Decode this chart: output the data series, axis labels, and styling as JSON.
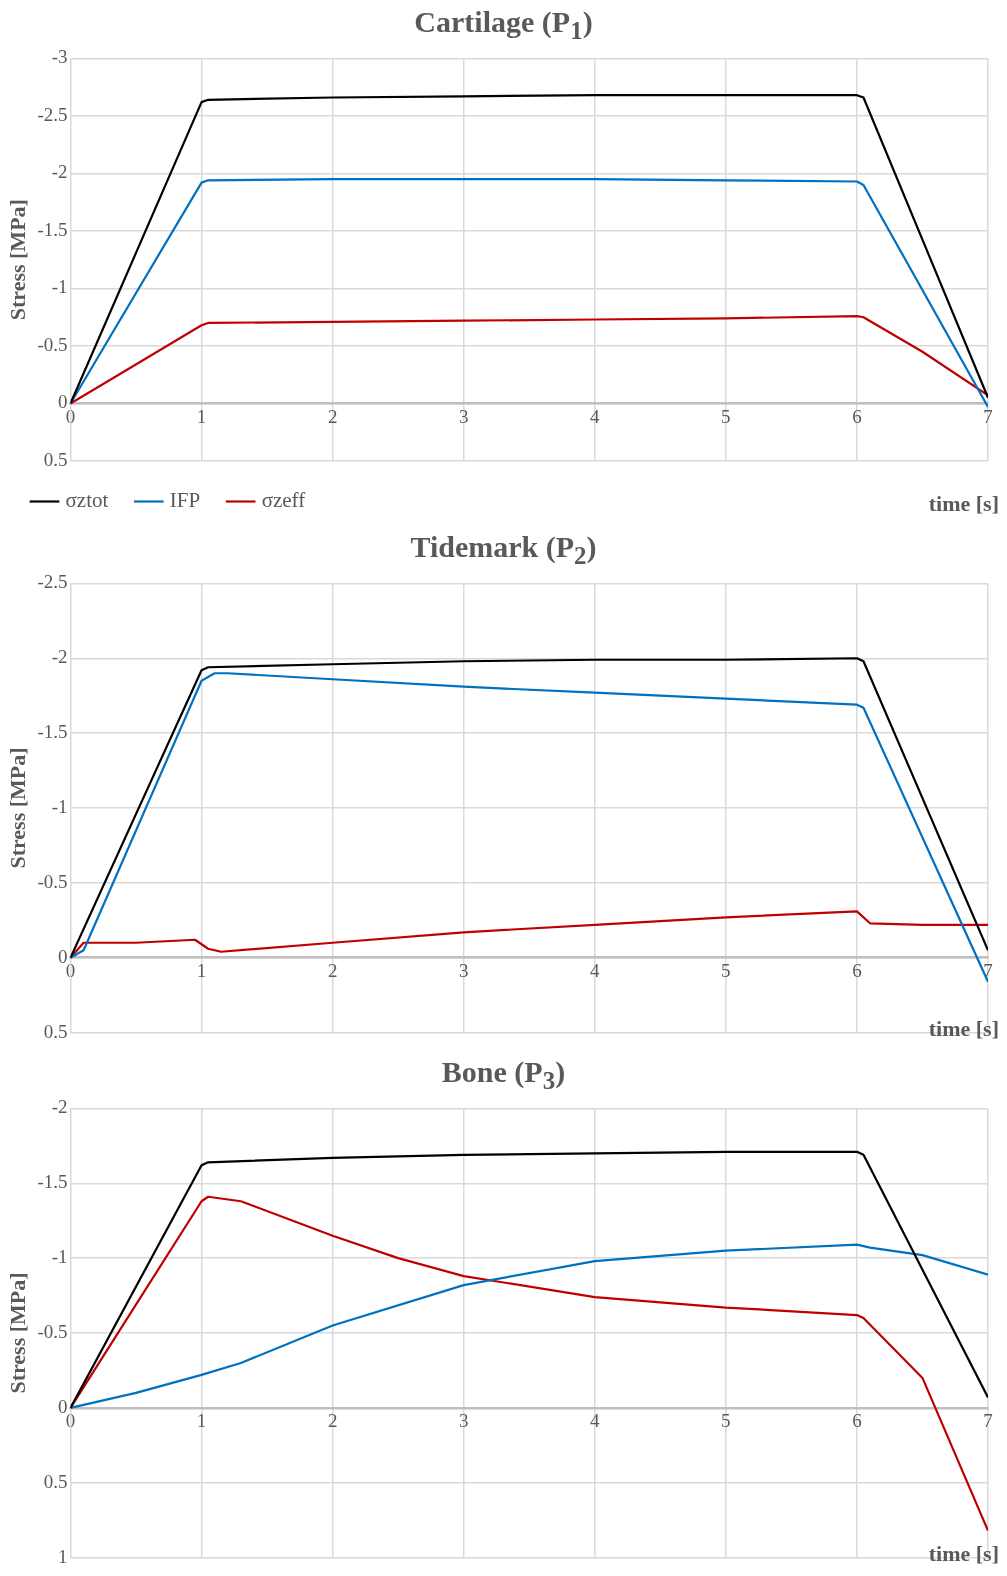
{
  "chart_data": [
    {
      "type": "line",
      "title": "Cartilage (P$_{1}$)",
      "xlabel": "time [s]",
      "ylabel": "Stress [MPa]",
      "xlim": [
        0,
        7
      ],
      "xticks": [
        0,
        1,
        2,
        3,
        4,
        5,
        6,
        7
      ],
      "ylim": [
        0.5,
        -3
      ],
      "yticks": [
        -3,
        -2.5,
        -2,
        -1.5,
        -1,
        -0.5,
        0,
        0.5
      ],
      "grid": true,
      "legend": "bottom left",
      "series": [
        {
          "name": "σztot",
          "color": "#000000",
          "x": [
            0,
            1,
            1.05,
            2,
            3,
            4,
            5,
            6,
            6.05,
            7
          ],
          "values": [
            0,
            -2.62,
            -2.64,
            -2.66,
            -2.67,
            -2.68,
            -2.68,
            -2.68,
            -2.66,
            -0.05
          ]
        },
        {
          "name": "IFP",
          "color": "#0070c0",
          "x": [
            0,
            1,
            1.05,
            2,
            3,
            4,
            5,
            6,
            6.05,
            7
          ],
          "values": [
            0,
            -1.92,
            -1.94,
            -1.95,
            -1.95,
            -1.95,
            -1.94,
            -1.93,
            -1.9,
            0.03
          ]
        },
        {
          "name": "σzeff",
          "color": "#c00000",
          "x": [
            0,
            1,
            1.05,
            2,
            3,
            4,
            5,
            6,
            6.05,
            6.5,
            7
          ],
          "values": [
            0,
            -0.68,
            -0.7,
            -0.71,
            -0.72,
            -0.73,
            -0.74,
            -0.76,
            -0.75,
            -0.45,
            -0.07
          ]
        }
      ]
    },
    {
      "type": "line",
      "title": "Tidemark (P$_{2}$)",
      "xlabel": "time [s]",
      "ylabel": "Stress [MPa]",
      "xlim": [
        0,
        7
      ],
      "xticks": [
        0,
        1,
        2,
        3,
        4,
        5,
        6,
        7
      ],
      "ylim": [
        0.5,
        -2.5
      ],
      "yticks": [
        -2.5,
        -2,
        -1.5,
        -1,
        -0.5,
        0,
        0.5
      ],
      "grid": true,
      "series": [
        {
          "color": "#000000",
          "x": [
            0,
            1,
            1.05,
            2,
            3,
            4,
            5,
            6,
            6.05,
            7
          ],
          "values": [
            0,
            -1.92,
            -1.94,
            -1.96,
            -1.98,
            -1.99,
            -1.99,
            -2.0,
            -1.98,
            -0.05
          ]
        },
        {
          "color": "#0070c0",
          "x": [
            0,
            0.1,
            1,
            1.1,
            1.2,
            2,
            3,
            4,
            5,
            6,
            6.05,
            7
          ],
          "values": [
            0,
            -0.05,
            -1.85,
            -1.9,
            -1.9,
            -1.86,
            -1.81,
            -1.77,
            -1.73,
            -1.69,
            -1.67,
            0.16
          ]
        },
        {
          "color": "#c00000",
          "x": [
            0,
            0.1,
            0.5,
            0.95,
            1.05,
            1.15,
            2,
            3,
            4,
            5,
            6,
            6.1,
            6.5,
            7
          ],
          "values": [
            0,
            -0.1,
            -0.1,
            -0.12,
            -0.06,
            -0.04,
            -0.1,
            -0.17,
            -0.22,
            -0.27,
            -0.31,
            -0.23,
            -0.22,
            -0.22
          ]
        }
      ]
    },
    {
      "type": "line",
      "title": "Bone (P$_{3}$)",
      "xlabel": "time [s]",
      "ylabel": "Stress [MPa]",
      "xlim": [
        0,
        7
      ],
      "xticks": [
        0,
        1,
        2,
        3,
        4,
        5,
        6,
        7
      ],
      "ylim": [
        1,
        -2
      ],
      "yticks": [
        -2,
        -1.5,
        -1,
        -0.5,
        0,
        0.5,
        1
      ],
      "grid": true,
      "series": [
        {
          "color": "#000000",
          "x": [
            0,
            1,
            1.05,
            2,
            3,
            4,
            5,
            6,
            6.05,
            7
          ],
          "values": [
            0,
            -1.62,
            -1.64,
            -1.67,
            -1.69,
            -1.7,
            -1.71,
            -1.71,
            -1.69,
            -0.07
          ]
        },
        {
          "color": "#0070c0",
          "x": [
            0,
            0.5,
            1,
            1.3,
            2,
            3,
            4,
            5,
            6,
            6.1,
            6.5,
            7
          ],
          "values": [
            0,
            -0.1,
            -0.22,
            -0.3,
            -0.55,
            -0.82,
            -0.98,
            -1.05,
            -1.09,
            -1.07,
            -1.02,
            -0.89
          ]
        },
        {
          "color": "#c00000",
          "x": [
            0,
            1,
            1.05,
            1.3,
            2,
            2.5,
            3,
            4,
            5,
            6,
            6.05,
            6.5,
            7
          ],
          "values": [
            0,
            -1.38,
            -1.41,
            -1.38,
            -1.15,
            -1.0,
            -0.88,
            -0.74,
            -0.67,
            -0.62,
            -0.6,
            -0.2,
            0.82
          ]
        }
      ]
    }
  ]
}
